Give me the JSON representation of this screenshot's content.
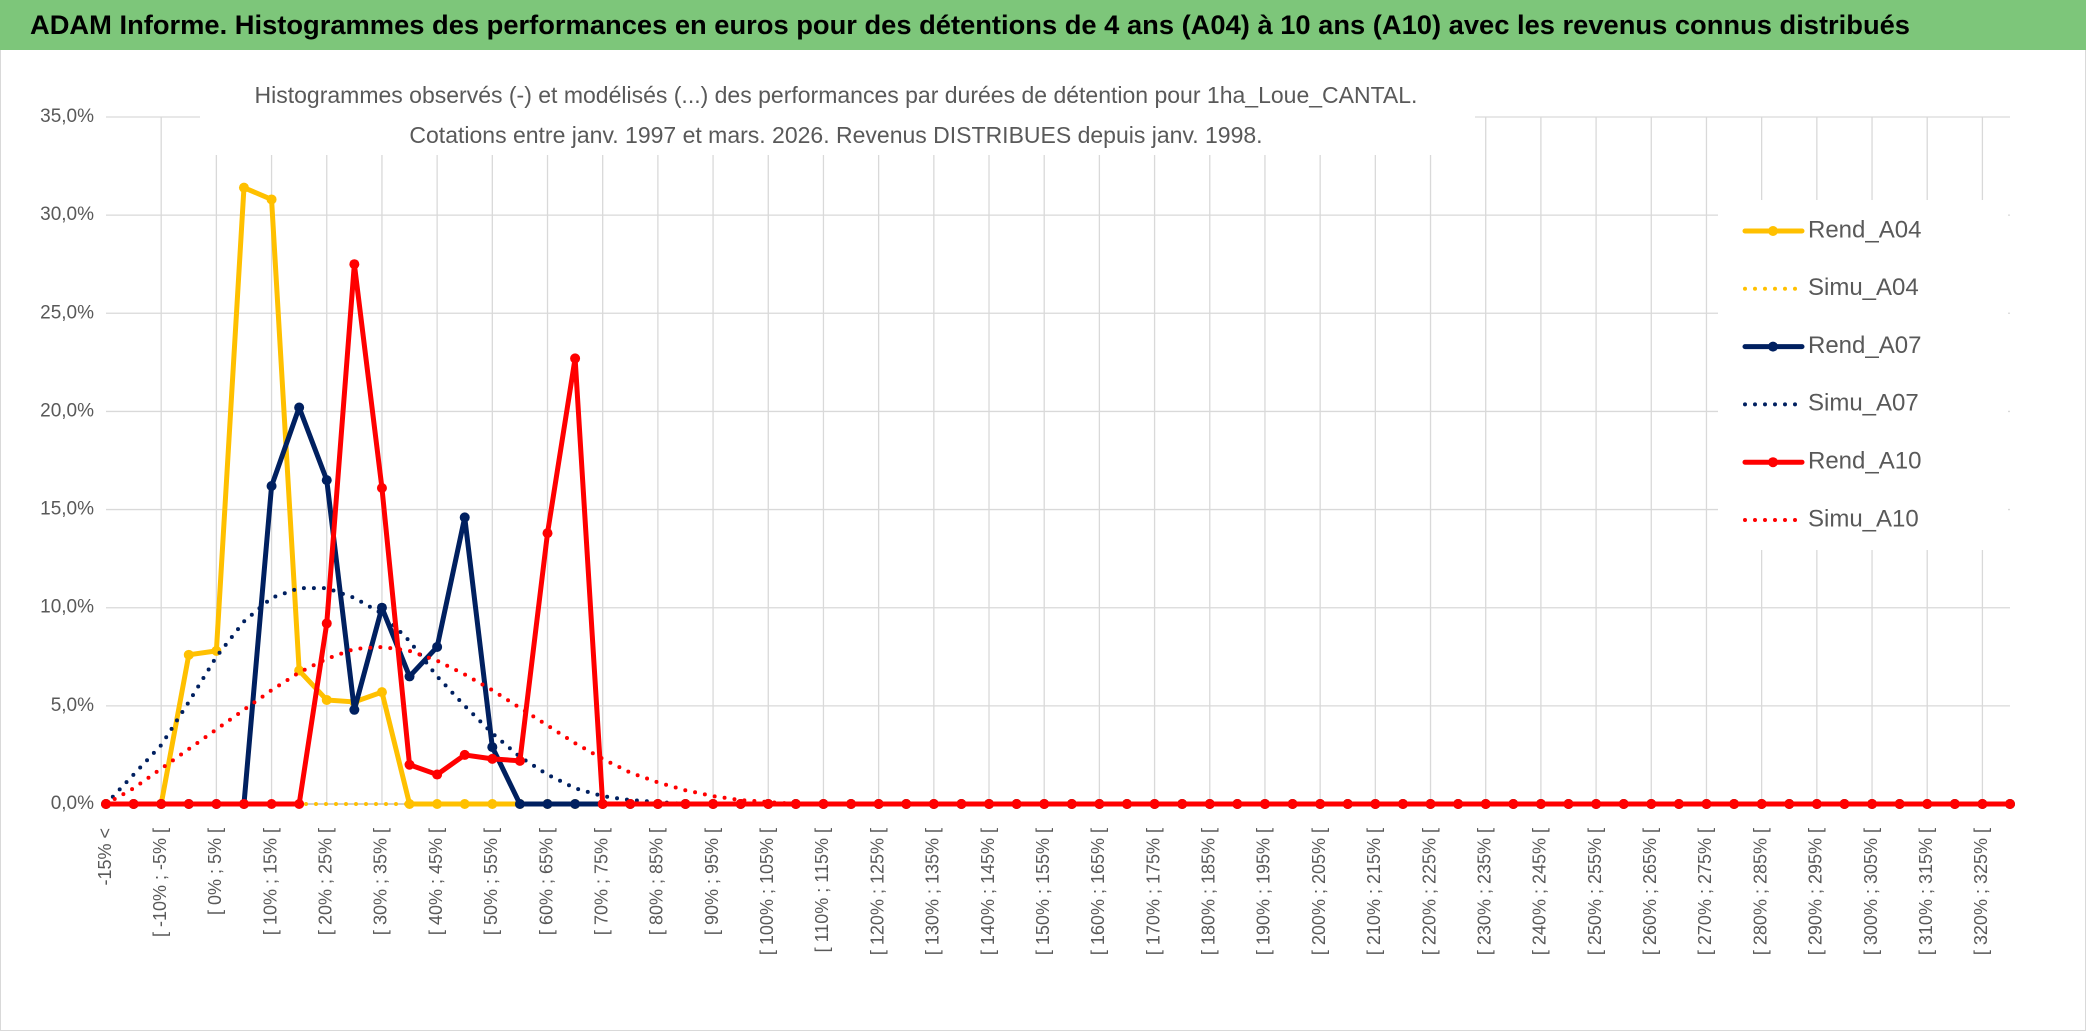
{
  "header": {
    "title": "ADAM Informe. Histogrammes des performances en euros pour des détentions de 4 ans (A04) à 10 ans (A10) avec les revenus connus distribués"
  },
  "chart_data": {
    "type": "line",
    "title": [
      "Histogrammes observés (-) et modélisés (...) des performances par durées de détention pour 1ha_Loue_CANTAL.",
      "Cotations entre janv. 1997 et mars. 2026. Revenus DISTRIBUES depuis janv. 1998."
    ],
    "categories": [
      "-15% <",
      null,
      "[ -10% ; -5% [",
      null,
      "[ 0% ; 5% [",
      null,
      "[ 10% ; 15% [",
      null,
      "[ 20% ; 25% [",
      null,
      "[ 30% ; 35% [",
      null,
      "[ 40% ; 45% [",
      null,
      "[ 50% ; 55% [",
      null,
      "[ 60% ; 65% [",
      null,
      "[ 70% ; 75% [",
      null,
      "[ 80% ; 85% [",
      null,
      "[ 90% ; 95% [",
      null,
      "[ 100% ; 105% [",
      null,
      "[ 110% ; 115% [",
      null,
      "[ 120% ; 125% [",
      null,
      "[ 130% ; 135% [",
      null,
      "[ 140% ; 145% [",
      null,
      "[ 150% ; 155% [",
      null,
      "[ 160% ; 165% [",
      null,
      "[ 170% ; 175% [",
      null,
      "[ 180% ; 185% [",
      null,
      "[ 190% ; 195% [",
      null,
      "[ 200% ; 205% [",
      null,
      "[ 210% ; 215% [",
      null,
      "[ 220% ; 225% [",
      null,
      "[ 230% ; 235% [",
      null,
      "[ 240% ; 245% [",
      null,
      "[ 250% ; 255% [",
      null,
      "[ 260% ; 265% [",
      null,
      "[ 270% ; 275% [",
      null,
      "[ 280% ; 285% [",
      null,
      "[ 290% ; 295% [",
      null,
      "[ 300% ; 305% [",
      null,
      "[ 310% ; 315% [",
      null,
      "[ 320% ; 325% [",
      null
    ],
    "series": [
      {
        "name": "Rend_A04",
        "color": "#FFC000",
        "line_style": "solid",
        "markers": true,
        "values": [
          0,
          0,
          0,
          7.6,
          7.8,
          31.4,
          30.8,
          6.8,
          5.3,
          5.2,
          5.7,
          0,
          0,
          0,
          0,
          0,
          0,
          0,
          0,
          0,
          0,
          0,
          0,
          0,
          0,
          0,
          0,
          0,
          0,
          0,
          0,
          0,
          0,
          0,
          0,
          0,
          0,
          0,
          0,
          0,
          0,
          0,
          0,
          0,
          0,
          0,
          0,
          0,
          0,
          0,
          0,
          0,
          0,
          0,
          0,
          0,
          0,
          0,
          0,
          0,
          0,
          0,
          0,
          0,
          0,
          0,
          0,
          0,
          0,
          0
        ]
      },
      {
        "name": "Simu_A04",
        "color": "#FFC000",
        "line_style": "dotted",
        "markers": false,
        "values": [
          0,
          0,
          0,
          0,
          0,
          0,
          0,
          0,
          0,
          0,
          0,
          0,
          0,
          0,
          0,
          0,
          0,
          0,
          0,
          0,
          0,
          0,
          0,
          0,
          0,
          0,
          0,
          0,
          0,
          0,
          0,
          0,
          0,
          0,
          0,
          0,
          0,
          0,
          0,
          0,
          0,
          0,
          0,
          0,
          0,
          0,
          0,
          0,
          0,
          0,
          0,
          0,
          0,
          0,
          0,
          0,
          0,
          0,
          0,
          0,
          0,
          0,
          0,
          0,
          0,
          0,
          0,
          0,
          0,
          0
        ]
      },
      {
        "name": "Rend_A07",
        "color": "#002060",
        "line_style": "solid",
        "markers": true,
        "values": [
          0,
          0,
          0,
          0,
          0,
          0,
          16.2,
          20.2,
          16.5,
          4.8,
          10.0,
          6.5,
          8.0,
          14.6,
          2.9,
          0,
          0,
          0,
          0,
          0,
          0,
          0,
          0,
          0,
          0,
          0,
          0,
          0,
          0,
          0,
          0,
          0,
          0,
          0,
          0,
          0,
          0,
          0,
          0,
          0,
          0,
          0,
          0,
          0,
          0,
          0,
          0,
          0,
          0,
          0,
          0,
          0,
          0,
          0,
          0,
          0,
          0,
          0,
          0,
          0,
          0,
          0,
          0,
          0,
          0,
          0,
          0,
          0,
          0,
          0
        ]
      },
      {
        "name": "Simu_A07",
        "color": "#002060",
        "line_style": "dotted",
        "markers": false,
        "values": [
          0,
          1.5,
          3,
          5.2,
          7.5,
          9.3,
          10.5,
          11,
          11,
          10.5,
          9.7,
          8.3,
          6.5,
          5,
          3.6,
          2.4,
          1.5,
          0.8,
          0.4,
          0.2,
          0.1,
          0,
          0,
          0,
          0,
          0,
          0,
          0,
          0,
          0,
          0,
          0,
          0,
          0,
          0,
          0,
          0,
          0,
          0,
          0,
          0,
          0,
          0,
          0,
          0,
          0,
          0,
          0,
          0,
          0,
          0,
          0,
          0,
          0,
          0,
          0,
          0,
          0,
          0,
          0,
          0,
          0,
          0,
          0,
          0,
          0,
          0,
          0,
          0,
          0
        ]
      },
      {
        "name": "Rend_A10",
        "color": "#FF0000",
        "line_style": "solid",
        "markers": true,
        "values": [
          0,
          0,
          0,
          0,
          0,
          0,
          0,
          0,
          9.2,
          27.5,
          16.1,
          2.0,
          1.5,
          2.5,
          2.3,
          2.2,
          13.8,
          22.7,
          0,
          0,
          0,
          0,
          0,
          0,
          0,
          0,
          0,
          0,
          0,
          0,
          0,
          0,
          0,
          0,
          0,
          0,
          0,
          0,
          0,
          0,
          0,
          0,
          0,
          0,
          0,
          0,
          0,
          0,
          0,
          0,
          0,
          0,
          0,
          0,
          0,
          0,
          0,
          0,
          0,
          0,
          0,
          0,
          0,
          0,
          0,
          0,
          0,
          0,
          0,
          0
        ]
      },
      {
        "name": "Simu_A10",
        "color": "#FF0000",
        "line_style": "dotted",
        "markers": false,
        "values": [
          0,
          0.8,
          1.8,
          2.8,
          3.8,
          4.8,
          5.8,
          6.7,
          7.4,
          7.9,
          8.0,
          7.8,
          7.3,
          6.6,
          5.8,
          4.9,
          4.0,
          3.1,
          2.3,
          1.6,
          1.1,
          0.7,
          0.4,
          0.2,
          0.1,
          0,
          0,
          0,
          0,
          0,
          0,
          0,
          0,
          0,
          0,
          0,
          0,
          0,
          0,
          0,
          0,
          0,
          0,
          0,
          0,
          0,
          0,
          0,
          0,
          0,
          0,
          0,
          0,
          0,
          0,
          0,
          0,
          0,
          0,
          0,
          0,
          0,
          0,
          0,
          0,
          0,
          0,
          0,
          0,
          0
        ]
      }
    ],
    "ylim": [
      0,
      35
    ],
    "yticks": [
      {
        "value": 0,
        "label": "0,0%"
      },
      {
        "value": 5,
        "label": "5,0%"
      },
      {
        "value": 10,
        "label": "10,0%"
      },
      {
        "value": 15,
        "label": "15,0%"
      },
      {
        "value": 20,
        "label": "20,0%"
      },
      {
        "value": 25,
        "label": "25,0%"
      },
      {
        "value": 30,
        "label": "30,0%"
      },
      {
        "value": 35,
        "label": "35,0%"
      }
    ],
    "grid": true,
    "legend": "right"
  }
}
